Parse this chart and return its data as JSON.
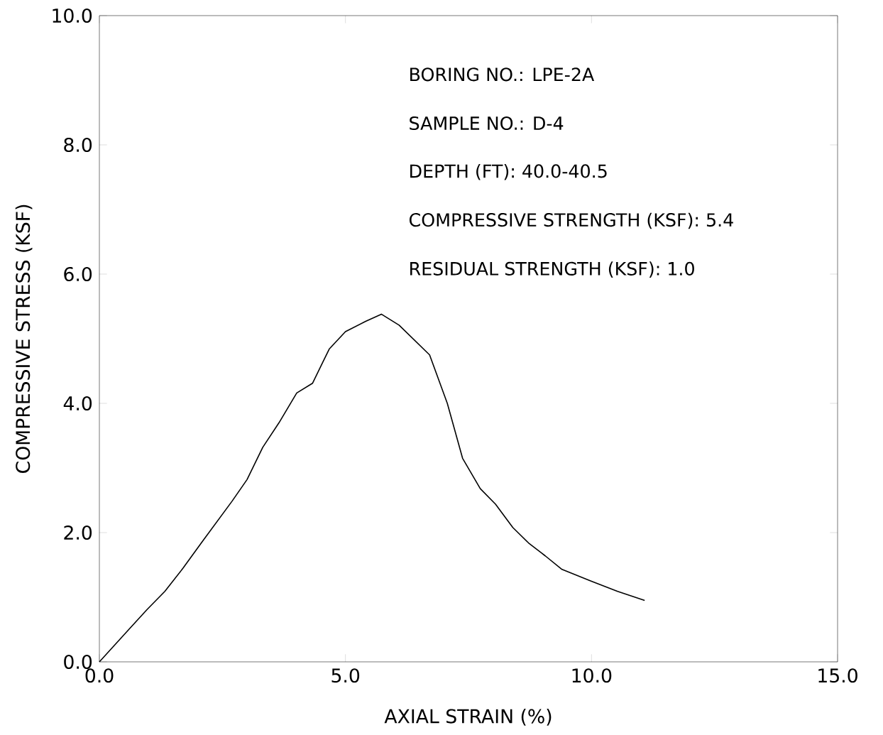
{
  "chart_data": {
    "type": "line",
    "xlabel": "AXIAL STRAIN (%)",
    "ylabel": "COMPRESSIVE STRESS (KSF)",
    "x": [
      0,
      0.62,
      0.97,
      1.33,
      1.7,
      2.09,
      2.7,
      3.0,
      3.32,
      3.65,
      4.01,
      4.33,
      4.67,
      5.0,
      5.41,
      5.73,
      6.09,
      6.71,
      7.07,
      7.38,
      7.74,
      8.05,
      8.4,
      8.72,
      9.06,
      9.4,
      9.99,
      10.53,
      11.08
    ],
    "values": [
      0,
      0.52,
      0.81,
      1.09,
      1.45,
      1.86,
      2.49,
      2.82,
      3.32,
      3.7,
      4.16,
      4.31,
      4.84,
      5.11,
      5.27,
      5.38,
      5.21,
      4.75,
      4.0,
      3.15,
      2.68,
      2.44,
      2.08,
      1.84,
      1.64,
      1.43,
      1.25,
      1.09,
      0.95
    ],
    "color": "#000000",
    "xlim": [
      0,
      15
    ],
    "ylim": [
      0,
      10
    ],
    "xticks": [
      {
        "value": 0,
        "label": "0.0"
      },
      {
        "value": 5,
        "label": "5.0"
      },
      {
        "value": 10,
        "label": "10.0"
      },
      {
        "value": 15,
        "label": "15.0"
      }
    ],
    "yticks": [
      {
        "value": 0,
        "label": "0.0"
      },
      {
        "value": 2,
        "label": "2.0"
      },
      {
        "value": 4,
        "label": "4.0"
      },
      {
        "value": 6,
        "label": "6.0"
      },
      {
        "value": 8,
        "label": "8.0"
      },
      {
        "value": 10,
        "label": "10.0"
      }
    ],
    "annotations": [
      "BORING NO.: LPE-2A",
      "SAMPLE NO.: D-4",
      "DEPTH (FT): 40.0-40.5",
      "COMPRESSIVE STRENGTH (KSF): 5.4",
      "RESIDUAL STRENGTH (KSF): 1.0"
    ]
  }
}
